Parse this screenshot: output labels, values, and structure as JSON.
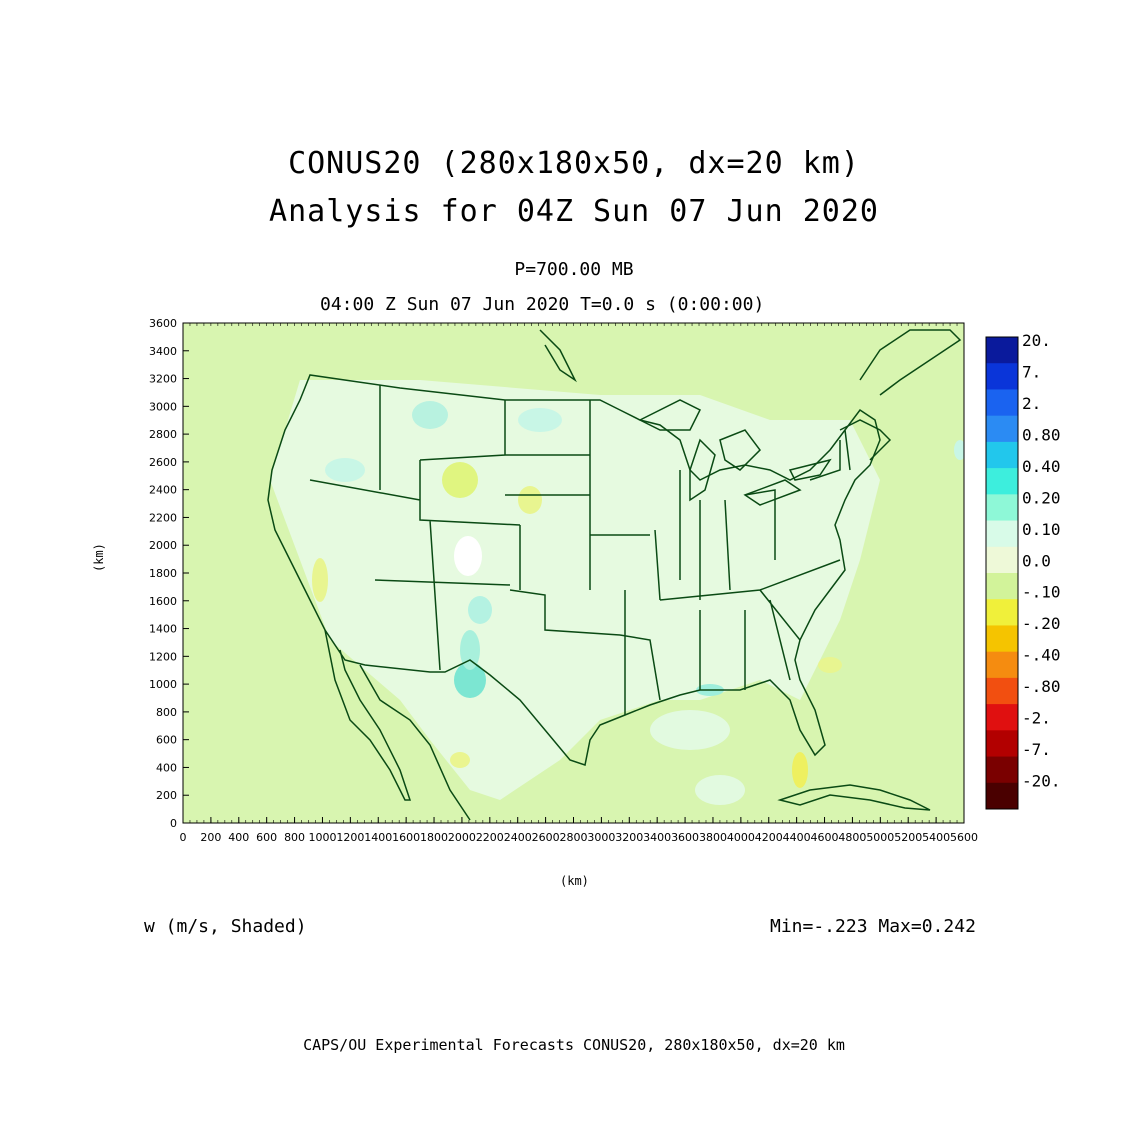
{
  "title": {
    "line1": "CONUS20 (280x180x50, dx=20 km)",
    "line2": "Analysis for 04Z Sun 07 Jun 2020"
  },
  "level": "P=700.00 MB",
  "valid_time": "04:00 Z Sun 07 Jun 2020   T=0.0 s (0:00:00)",
  "variable": "w (m/s, Shaded)",
  "minmax": "Min=-.223 Max=0.242",
  "footer": "CAPS/OU Experimental Forecasts  CONUS20, 280x180x50, dx=20 km",
  "axes": {
    "xlabel": "(km)",
    "ylabel": "(km)",
    "x_ticks": [
      "0",
      "200",
      "400",
      "600",
      "800",
      "1000",
      "1200",
      "1400",
      "1600",
      "1800",
      "2000",
      "2200",
      "2400",
      "2600",
      "2800",
      "3000",
      "3200",
      "3400",
      "3600",
      "3800",
      "4000",
      "4200",
      "4400",
      "4600",
      "4800",
      "5000",
      "5200",
      "5400",
      "5600"
    ],
    "y_ticks": [
      "0",
      "200",
      "400",
      "600",
      "800",
      "1000",
      "1200",
      "1400",
      "1600",
      "1800",
      "2000",
      "2200",
      "2400",
      "2600",
      "2800",
      "3000",
      "3200",
      "3400",
      "3600"
    ],
    "xlim": [
      0,
      5600
    ],
    "ylim": [
      0,
      3600
    ]
  },
  "colorbar": {
    "labels": [
      "20.",
      "7.",
      "2.",
      "0.80",
      "0.40",
      "0.20",
      "0.10",
      "0.0",
      "-.10",
      "-.20",
      "-.40",
      "-.80",
      "-2.",
      "-7.",
      "-20."
    ],
    "colors": [
      "#0a1a9c",
      "#0a35d9",
      "#1a63f0",
      "#2b8bf3",
      "#22c7ec",
      "#3deedd",
      "#8ef8d7",
      "#d8fbe8",
      "#eef9d8",
      "#d2f39a",
      "#f0f03a",
      "#f5c400",
      "#f58c10",
      "#f24f10",
      "#e01010",
      "#b20000",
      "#7a0000",
      "#4a0000"
    ]
  },
  "map_colors": {
    "background": "#d8f5b0",
    "positive_light": "#e4fbe4",
    "positive_mid": "#a8f0dc",
    "positive_strong": "#55dcc8",
    "negative_light": "#e8f8a8",
    "negative_mid": "#f0f060",
    "boundary": "#0a4a14"
  }
}
